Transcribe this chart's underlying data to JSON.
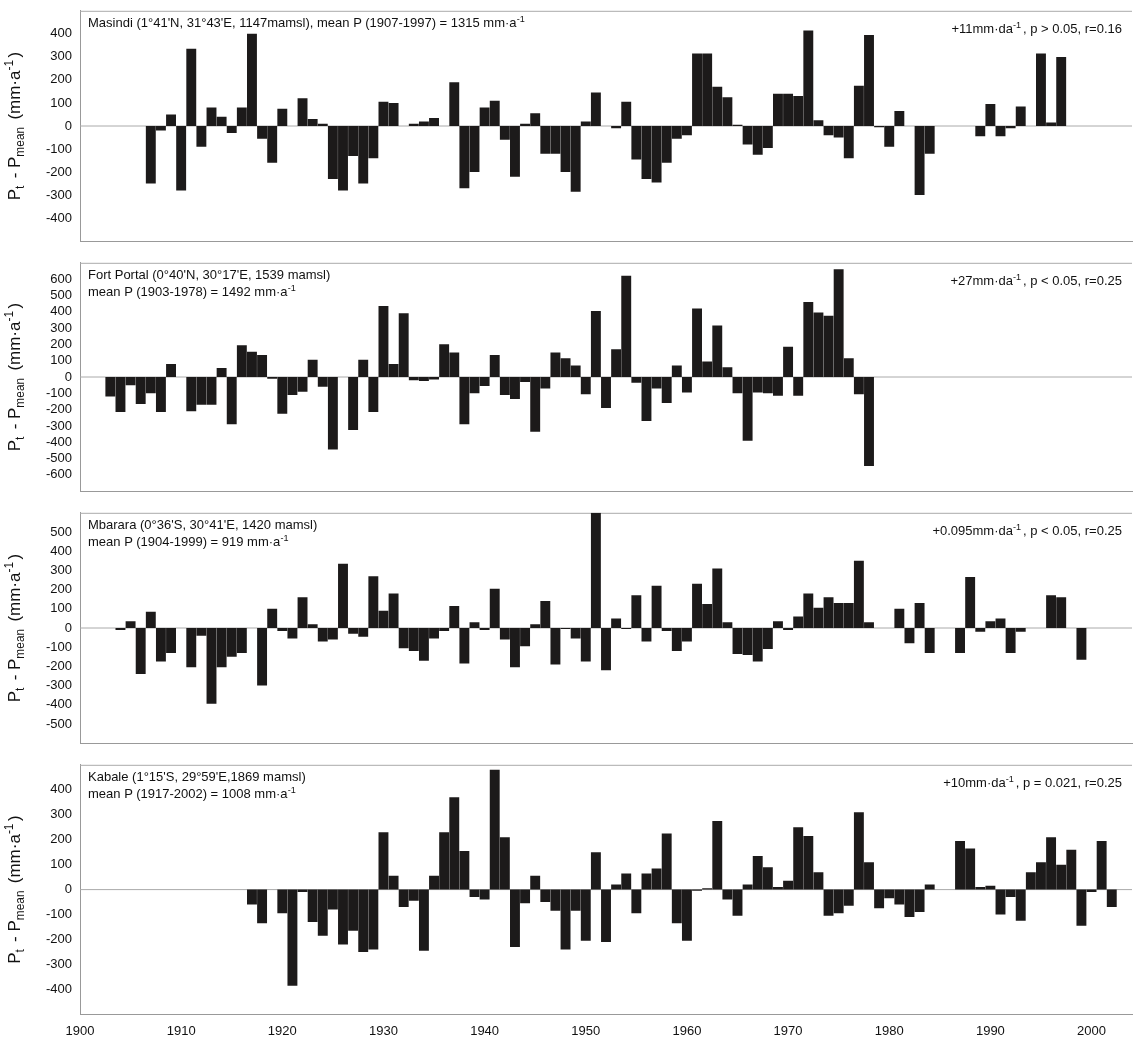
{
  "chart_data": [
    {
      "type": "bar",
      "title": "Masindi (1°41'N, 31°43'E, 1147mamsl), mean P (1907-1997) = 1315 mm·a$^{-1}$",
      "ylabel": "P$_{t}$ - P$_{mean}$ (mm·a$^{-1}$)",
      "annotations": [
        "+11mm·da$^{-1}$, p > 0.05, r=0.16"
      ],
      "color": "#1c1a1a",
      "xlim": [
        1900,
        2004
      ],
      "xticks": [
        1900,
        1910,
        1920,
        1930,
        1940,
        1950,
        1960,
        1970,
        1980,
        1990,
        2000
      ],
      "ylim": [
        -500,
        500
      ],
      "yticks": [
        -400,
        -300,
        -200,
        -100,
        0,
        100,
        200,
        300,
        400
      ],
      "tick_labels": "y",
      "x": [
        1907,
        1908,
        1909,
        1910,
        1911,
        1912,
        1913,
        1914,
        1915,
        1916,
        1917,
        1918,
        1919,
        1920,
        1921,
        1922,
        1923,
        1924,
        1925,
        1926,
        1927,
        1928,
        1929,
        1930,
        1931,
        1932,
        1933,
        1934,
        1935,
        1936,
        1937,
        1938,
        1939,
        1940,
        1941,
        1942,
        1943,
        1944,
        1945,
        1946,
        1947,
        1948,
        1949,
        1950,
        1951,
        1952,
        1953,
        1954,
        1955,
        1956,
        1957,
        1958,
        1959,
        1960,
        1961,
        1962,
        1963,
        1964,
        1965,
        1966,
        1967,
        1968,
        1969,
        1970,
        1971,
        1972,
        1973,
        1974,
        1975,
        1976,
        1977,
        1978,
        1979,
        1980,
        1981,
        1982,
        1983,
        1984,
        1985,
        1986,
        1987,
        1988,
        1989,
        1990,
        1991,
        1992,
        1993,
        1994,
        1995,
        1996,
        1997
      ],
      "values": [
        -250,
        -20,
        50,
        -280,
        335,
        -90,
        80,
        40,
        -30,
        80,
        400,
        -55,
        -160,
        75,
        null,
        120,
        30,
        10,
        -230,
        -280,
        -130,
        -250,
        -140,
        105,
        100,
        null,
        10,
        20,
        35,
        null,
        190,
        -270,
        -200,
        80,
        110,
        -60,
        -220,
        10,
        55,
        -120,
        -120,
        -200,
        -285,
        20,
        145,
        null,
        -10,
        105,
        -145,
        -230,
        -245,
        -160,
        -55,
        -40,
        315,
        315,
        170,
        125,
        5,
        -80,
        -125,
        -95,
        140,
        140,
        130,
        415,
        25,
        -40,
        -50,
        -140,
        175,
        395,
        -5,
        -90,
        65,
        null,
        -300,
        -120,
        null,
        null,
        null,
        null,
        -45,
        95,
        -45,
        -10,
        85,
        null,
        315,
        15,
        300
      ]
    },
    {
      "type": "bar",
      "title": "Fort Portal (0°40'N, 30°17'E, 1539 mamsl)",
      "subtitle": "mean P (1903-1978) = 1492 mm·a$^{-1}$",
      "ylabel": "P$_{t}$ - P$_{mean}$ (mm·a$^{-1}$)",
      "annotations": [
        "+27mm·da$^{-1}$, p < 0.05, r=0.25"
      ],
      "color": "#1c1a1a",
      "xlim": [
        1900,
        2004
      ],
      "xticks": [
        1900,
        1910,
        1920,
        1930,
        1940,
        1950,
        1960,
        1970,
        1980,
        1990,
        2000
      ],
      "ylim": [
        -700,
        700
      ],
      "yticks": [
        -600,
        -500,
        -400,
        -300,
        -200,
        -100,
        0,
        100,
        200,
        300,
        400,
        500,
        600
      ],
      "tick_labels": "y",
      "x": [
        1903,
        1904,
        1905,
        1906,
        1907,
        1908,
        1909,
        1910,
        1911,
        1912,
        1913,
        1914,
        1915,
        1916,
        1917,
        1918,
        1919,
        1920,
        1921,
        1922,
        1923,
        1924,
        1925,
        1926,
        1927,
        1928,
        1929,
        1930,
        1931,
        1932,
        1933,
        1934,
        1935,
        1936,
        1937,
        1938,
        1939,
        1940,
        1941,
        1942,
        1943,
        1944,
        1945,
        1946,
        1947,
        1948,
        1949,
        1950,
        1951,
        1952,
        1953,
        1954,
        1955,
        1956,
        1957,
        1958,
        1959,
        1960,
        1961,
        1962,
        1963,
        1964,
        1965,
        1966,
        1967,
        1968,
        1969,
        1970,
        1971,
        1972,
        1973,
        1974,
        1975,
        1976,
        1977,
        1978
      ],
      "values": [
        -120,
        -215,
        -50,
        -165,
        -100,
        -215,
        80,
        null,
        -210,
        -170,
        -170,
        55,
        -290,
        195,
        155,
        135,
        -10,
        -225,
        -110,
        -90,
        105,
        -60,
        -445,
        null,
        -325,
        105,
        -215,
        435,
        80,
        390,
        -20,
        -25,
        -15,
        200,
        150,
        -290,
        -100,
        -55,
        135,
        -110,
        -135,
        -30,
        -335,
        -70,
        150,
        115,
        70,
        -105,
        405,
        -190,
        170,
        620,
        -35,
        -270,
        -70,
        -160,
        70,
        -95,
        420,
        95,
        315,
        60,
        -100,
        -390,
        -95,
        -100,
        -115,
        185,
        -115,
        460,
        395,
        375,
        660,
        115,
        -105,
        -545
      ]
    },
    {
      "type": "bar",
      "title": "Mbarara (0°36'S, 30°41'E, 1420 mamsl)",
      "subtitle": "mean P (1904-1999) = 919 mm·a$^{-1}$",
      "ylabel": "P$_{t}$ - P$_{mean}$ (mm·a$^{-1}$)",
      "annotations": [
        "+0.095mm·da$^{-1}$, p < 0.05, r=0.25"
      ],
      "color": "#1c1a1a",
      "xlim": [
        1900,
        2004
      ],
      "xticks": [
        1900,
        1910,
        1920,
        1930,
        1940,
        1950,
        1960,
        1970,
        1980,
        1990,
        2000
      ],
      "ylim": [
        -600,
        600
      ],
      "yticks": [
        -500,
        -400,
        -300,
        -200,
        -100,
        0,
        100,
        200,
        300,
        400,
        500
      ],
      "tick_labels": "y",
      "x": [
        1904,
        1905,
        1906,
        1907,
        1908,
        1909,
        1910,
        1911,
        1912,
        1913,
        1914,
        1915,
        1916,
        1917,
        1918,
        1919,
        1920,
        1921,
        1922,
        1923,
        1924,
        1925,
        1926,
        1927,
        1928,
        1929,
        1930,
        1931,
        1932,
        1933,
        1934,
        1935,
        1936,
        1937,
        1938,
        1939,
        1940,
        1941,
        1942,
        1943,
        1944,
        1945,
        1946,
        1947,
        1948,
        1949,
        1950,
        1951,
        1952,
        1953,
        1954,
        1955,
        1956,
        1957,
        1958,
        1959,
        1960,
        1961,
        1962,
        1963,
        1964,
        1965,
        1966,
        1967,
        1968,
        1969,
        1970,
        1971,
        1972,
        1973,
        1974,
        1975,
        1976,
        1977,
        1978,
        1979,
        1980,
        1981,
        1982,
        1983,
        1984,
        1985,
        1986,
        1987,
        1988,
        1989,
        1990,
        1991,
        1992,
        1993,
        1994,
        1995,
        1996,
        1997,
        1998,
        1999
      ],
      "values": [
        -10,
        35,
        -240,
        85,
        -175,
        -130,
        null,
        -205,
        -40,
        -395,
        -205,
        -150,
        -130,
        null,
        -300,
        100,
        -15,
        -55,
        160,
        20,
        -70,
        -60,
        335,
        -30,
        -45,
        270,
        90,
        180,
        -105,
        -120,
        -170,
        -55,
        -15,
        115,
        -185,
        30,
        -10,
        205,
        -60,
        -205,
        -95,
        20,
        140,
        -190,
        -5,
        -55,
        -175,
        600,
        -220,
        50,
        -5,
        170,
        -70,
        220,
        -15,
        -120,
        -70,
        230,
        125,
        310,
        30,
        -135,
        -140,
        -175,
        -110,
        35,
        -10,
        60,
        180,
        105,
        160,
        130,
        130,
        350,
        30,
        null,
        null,
        100,
        -80,
        130,
        -130,
        null,
        null,
        -130,
        265,
        -20,
        35,
        50,
        -130,
        -20,
        null,
        null,
        170,
        160,
        null,
        -165
      ]
    },
    {
      "type": "bar",
      "title": "Kabale (1°15'S, 29°59'E,1869 mamsl)",
      "subtitle": "mean P (1917-2002) = 1008 mm·a$^{-1}$",
      "ylabel": "P$_{t}$ - P$_{mean}$ (mm·a$^{-1}$)",
      "annotations": [
        "+10mm·da$^{-1}$, p = 0.021, r=0.25"
      ],
      "color": "#1c1a1a",
      "xlim": [
        1900,
        2004
      ],
      "xticks": [
        1900,
        1910,
        1920,
        1930,
        1940,
        1950,
        1960,
        1970,
        1980,
        1990,
        2000
      ],
      "ylim": [
        -500,
        500
      ],
      "yticks": [
        -400,
        -300,
        -200,
        -100,
        0,
        100,
        200,
        300,
        400
      ],
      "x": [
        1917,
        1918,
        1919,
        1920,
        1921,
        1922,
        1923,
        1924,
        1925,
        1926,
        1927,
        1928,
        1929,
        1930,
        1931,
        1932,
        1933,
        1934,
        1935,
        1936,
        1937,
        1938,
        1939,
        1940,
        1941,
        1942,
        1943,
        1944,
        1945,
        1946,
        1947,
        1948,
        1949,
        1950,
        1951,
        1952,
        1953,
        1954,
        1955,
        1956,
        1957,
        1958,
        1959,
        1960,
        1961,
        1962,
        1963,
        1964,
        1965,
        1966,
        1967,
        1968,
        1969,
        1970,
        1971,
        1972,
        1973,
        1974,
        1975,
        1976,
        1977,
        1978,
        1979,
        1980,
        1981,
        1982,
        1983,
        1984,
        1985,
        1986,
        1987,
        1988,
        1989,
        1990,
        1991,
        1992,
        1993,
        1994,
        1995,
        1996,
        1997,
        1998,
        1999,
        2000,
        2001,
        2002
      ],
      "values": [
        -60,
        -135,
        null,
        -95,
        -385,
        -10,
        -130,
        -185,
        -80,
        -220,
        -165,
        -250,
        -240,
        230,
        55,
        -70,
        -45,
        -245,
        55,
        230,
        370,
        155,
        -30,
        -40,
        480,
        210,
        -230,
        -55,
        55,
        -50,
        -85,
        -240,
        -85,
        -205,
        150,
        -210,
        20,
        65,
        -95,
        65,
        85,
        225,
        -135,
        -205,
        -5,
        5,
        275,
        -40,
        -105,
        20,
        135,
        90,
        10,
        35,
        250,
        215,
        70,
        -105,
        -95,
        -65,
        310,
        110,
        -75,
        -35,
        -60,
        -110,
        -90,
        20,
        null,
        null,
        195,
        165,
        10,
        15,
        -100,
        -30,
        -125,
        70,
        110,
        210,
        100,
        160,
        -145,
        -10,
        195,
        -70
      ]
    }
  ]
}
